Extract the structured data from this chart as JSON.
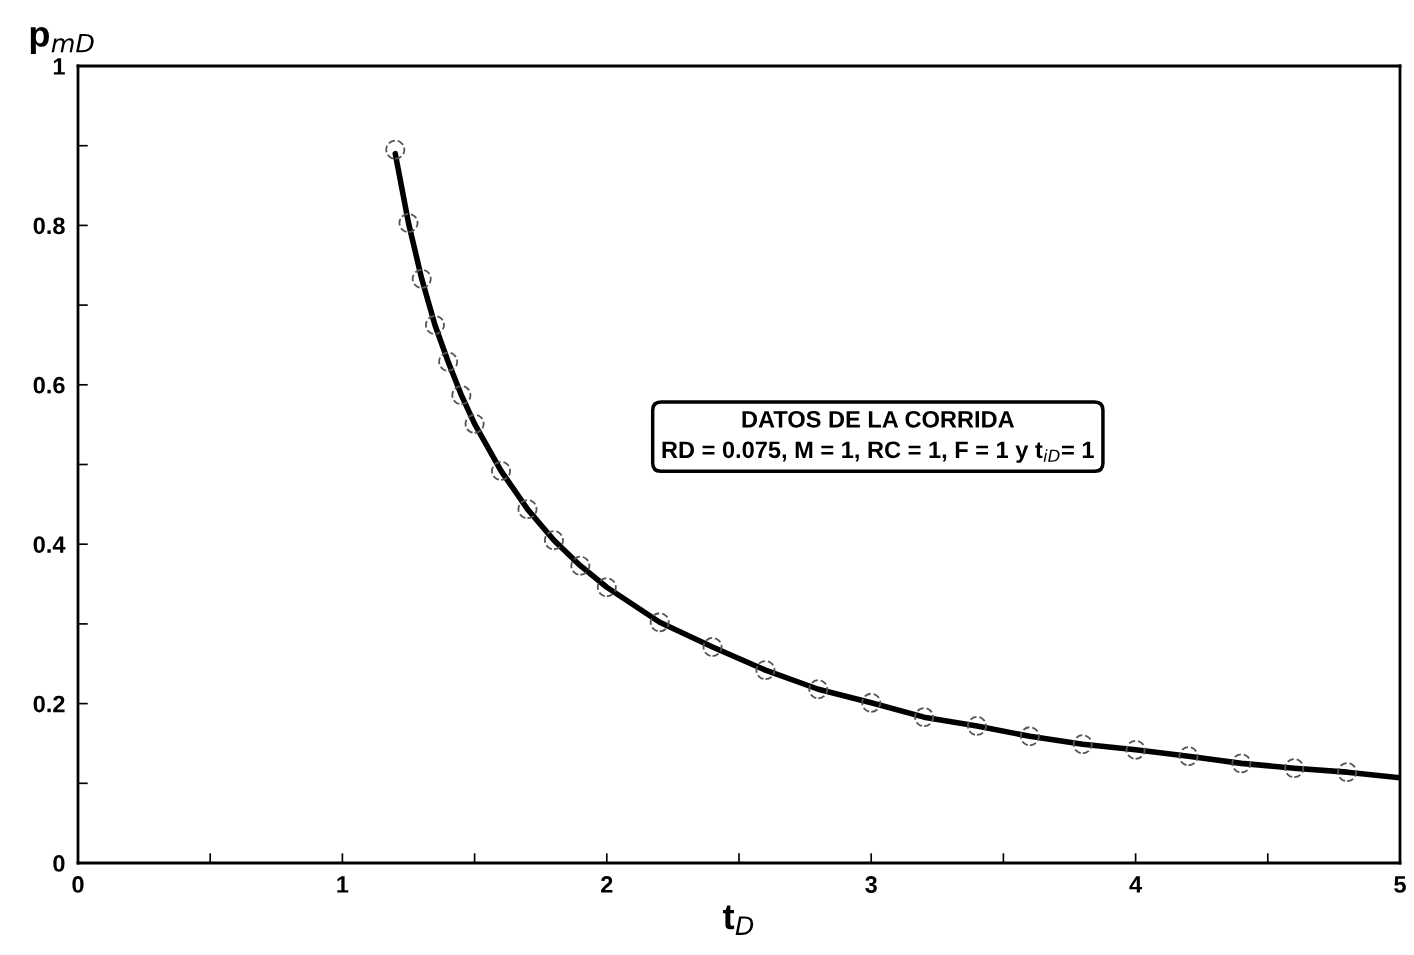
{
  "chart_data": {
    "type": "line",
    "xlabel": "t$_{D}$",
    "ylabel": "p$_{mD}$",
    "annotations": [
      "DATOS DE LA CORRIDA",
      "RD = 0.075, M = 1, RC = 1, F = 1 y t$_{iD}$= 1"
    ],
    "xlim": [
      0,
      5
    ],
    "ylim": [
      0,
      1
    ],
    "xticks": [
      0,
      {
        "value": 0.5,
        "label": null
      },
      1,
      {
        "value": 1.5,
        "label": null
      },
      2,
      {
        "value": 2.5,
        "label": null
      },
      3,
      {
        "value": 3.5,
        "label": null
      },
      4,
      {
        "value": 4.5,
        "label": null
      },
      5
    ],
    "yticks": [
      0,
      {
        "value": 0.1,
        "label": null
      },
      0.2,
      {
        "value": 0.3,
        "label": null
      },
      0.4,
      {
        "value": 0.5,
        "label": null
      },
      0.6,
      {
        "value": 0.7,
        "label": null
      },
      0.8,
      {
        "value": 0.9,
        "label": null
      },
      1
    ],
    "grid": false,
    "legend": false,
    "series": [
      {
        "color": "#000000",
        "marker": "none",
        "line_style": "solid",
        "x": [
          1.2,
          1.25,
          1.3,
          1.35,
          1.4,
          1.45,
          1.5,
          1.6,
          1.7,
          1.8,
          1.9,
          2.0,
          2.2,
          2.4,
          2.6,
          2.8,
          3.0,
          3.2,
          3.4,
          3.6,
          3.8,
          4.0,
          4.2,
          4.4,
          4.6,
          4.8,
          5.0
        ],
        "values": [
          0.89,
          0.803,
          0.733,
          0.675,
          0.629,
          0.587,
          0.551,
          0.492,
          0.444,
          0.405,
          0.373,
          0.346,
          0.302,
          0.271,
          0.242,
          0.218,
          0.201,
          0.183,
          0.172,
          0.159,
          0.149,
          0.142,
          0.134,
          0.125,
          0.119,
          0.114,
          0.107
        ]
      },
      {
        "type": "scatter",
        "color": "#555555",
        "marker": "circle",
        "x": [
          1.2,
          1.25,
          1.3,
          1.35,
          1.4,
          1.45,
          1.5,
          1.6,
          1.7,
          1.8,
          1.9,
          2.0,
          2.2,
          2.4,
          2.6,
          2.8,
          3.0,
          3.2,
          3.4,
          3.6,
          3.8,
          4.0,
          4.2,
          4.4,
          4.6,
          4.8
        ],
        "values": [
          0.895,
          0.803,
          0.733,
          0.675,
          0.629,
          0.587,
          0.551,
          0.492,
          0.444,
          0.405,
          0.373,
          0.346,
          0.302,
          0.271,
          0.242,
          0.218,
          0.201,
          0.183,
          0.172,
          0.159,
          0.149,
          0.142,
          0.134,
          0.125,
          0.119,
          0.114
        ]
      }
    ]
  }
}
